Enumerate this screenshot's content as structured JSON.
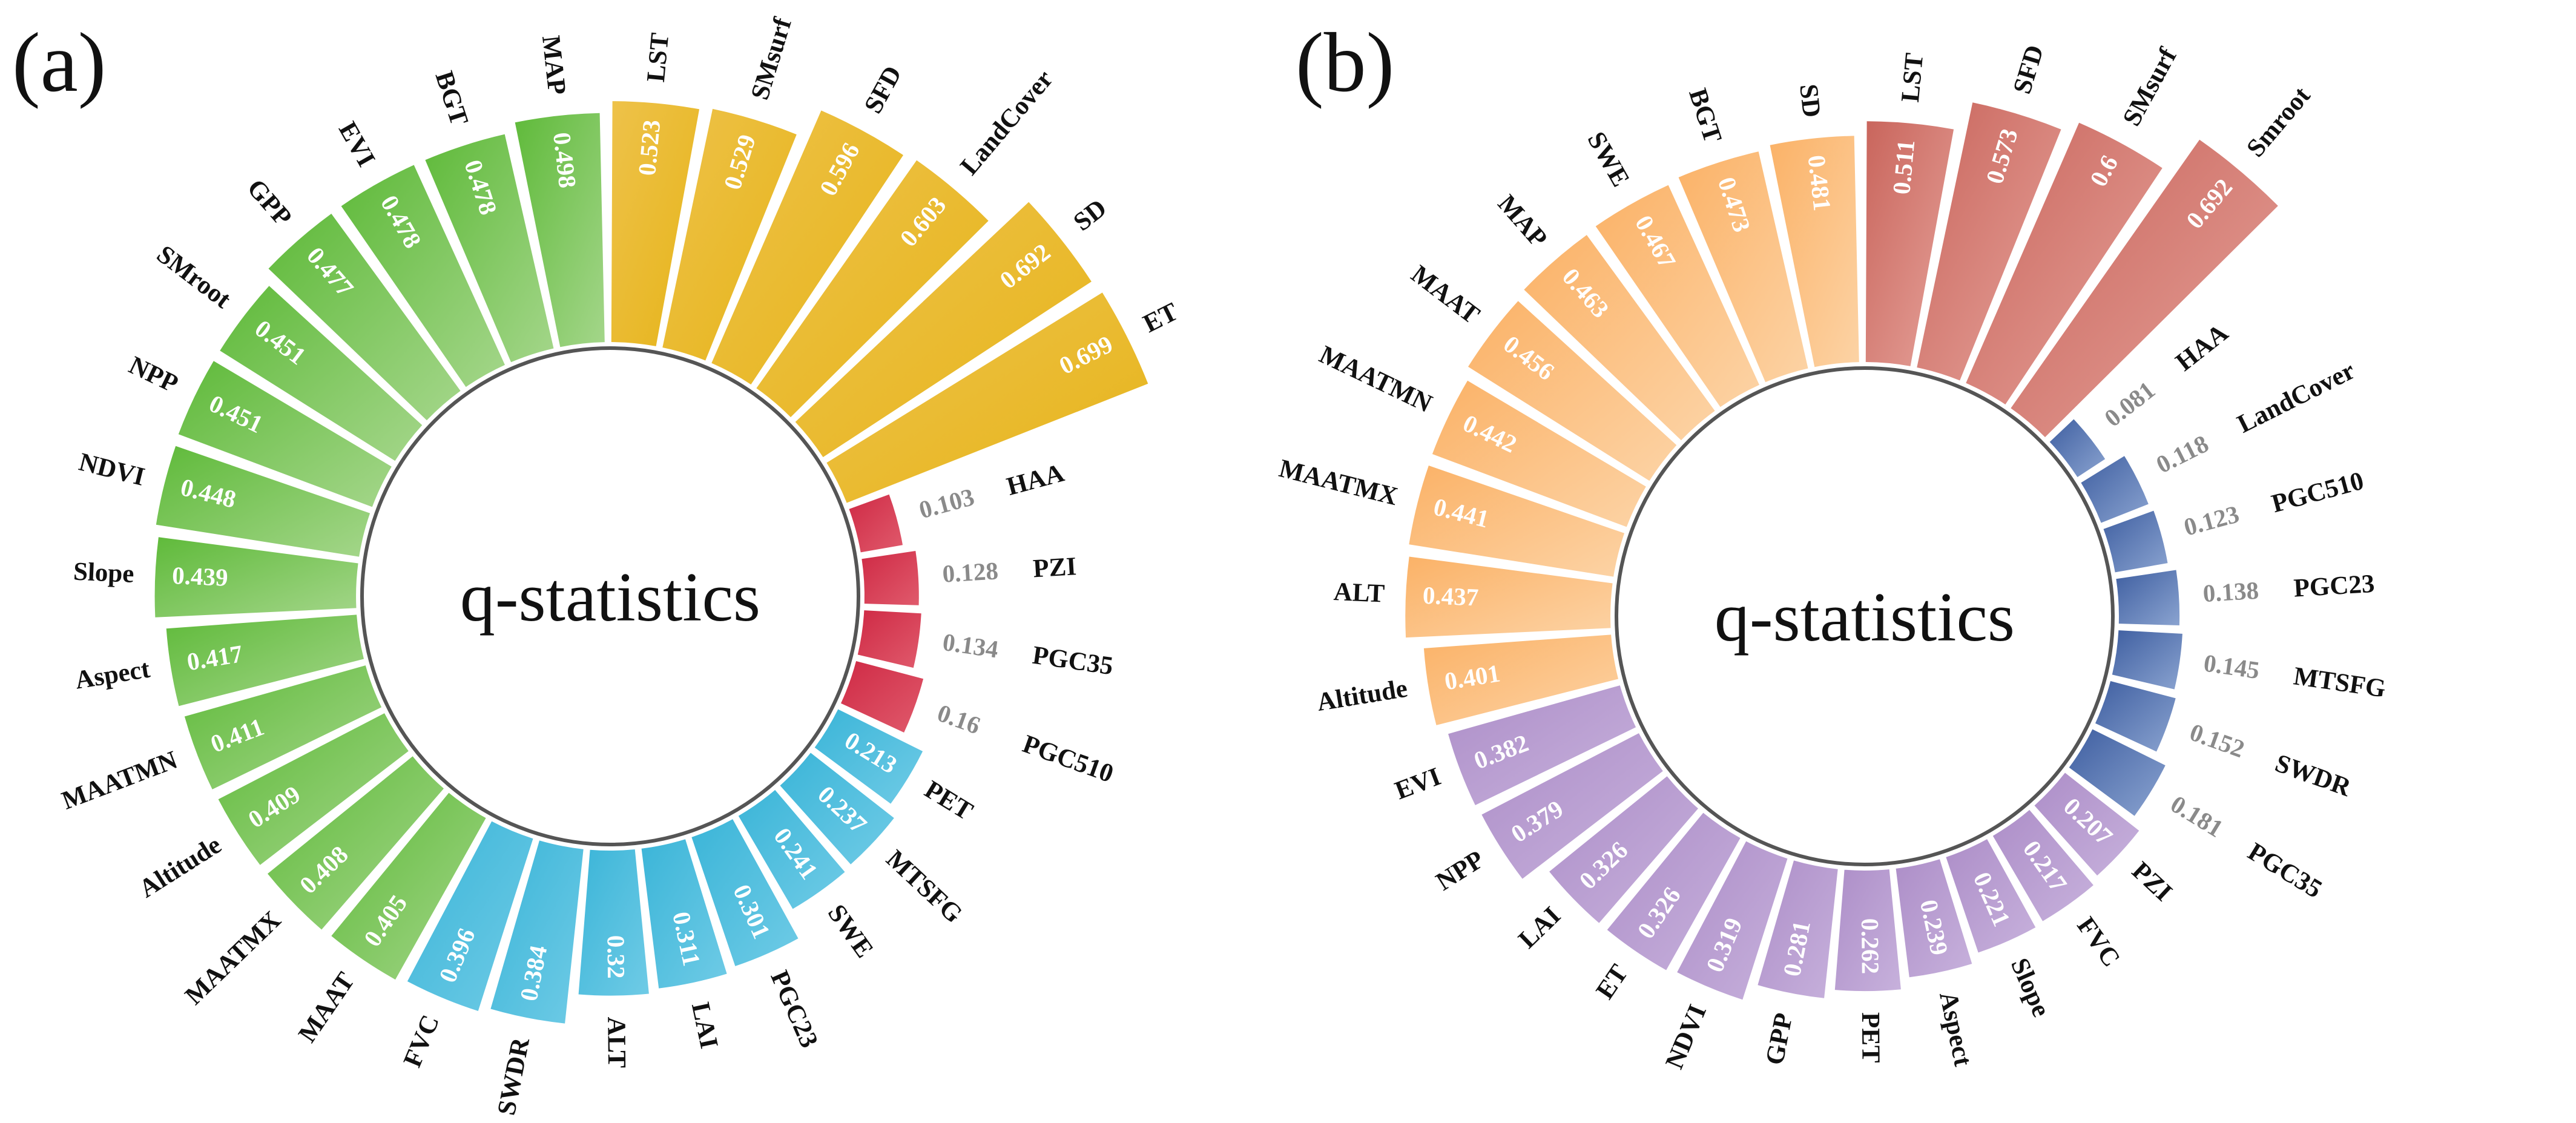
{
  "chart_data": [
    {
      "type": "bar",
      "subtype": "circular-bar",
      "panel_label": "(a)",
      "center_label": "q-statistics",
      "groups": [
        {
          "color_start": "#eec24a",
          "color_end": "#e6b419",
          "items": [
            {
              "label": "LST",
              "value": 0.523
            },
            {
              "label": "SMsurf",
              "value": 0.529
            },
            {
              "label": "SFD",
              "value": 0.596
            },
            {
              "label": "LandCover",
              "value": 0.603
            },
            {
              "label": "SD",
              "value": 0.692
            },
            {
              "label": "ET",
              "value": 0.699
            }
          ]
        },
        {
          "color_start": "#cf2a45",
          "color_end": "#e05a6c",
          "items": [
            {
              "label": "HAA",
              "value": 0.103
            },
            {
              "label": "PZI",
              "value": 0.128
            },
            {
              "label": "PGC35",
              "value": 0.134
            },
            {
              "label": "PGC510",
              "value": 0.16
            }
          ]
        },
        {
          "color_start": "#3bb5d8",
          "color_end": "#6fcbe6",
          "items": [
            {
              "label": "PET",
              "value": 0.213
            },
            {
              "label": "MTSFG",
              "value": 0.237
            },
            {
              "label": "SWE",
              "value": 0.241
            },
            {
              "label": "PGC23",
              "value": 0.301
            },
            {
              "label": "LAI",
              "value": 0.311
            },
            {
              "label": "ALT",
              "value": 0.32
            },
            {
              "label": "SWDR",
              "value": 0.384
            },
            {
              "label": "FVC",
              "value": 0.396
            }
          ]
        },
        {
          "color_start": "#5fba3a",
          "color_end": "#a4d68a",
          "items": [
            {
              "label": "MAAT",
              "value": 0.405
            },
            {
              "label": "MAATMX",
              "value": 0.408
            },
            {
              "label": "Altitude",
              "value": 0.409
            },
            {
              "label": "MAATMN",
              "value": 0.411
            },
            {
              "label": "Aspect",
              "value": 0.417
            },
            {
              "label": "Slope",
              "value": 0.439
            },
            {
              "label": "NDVI",
              "value": 0.448
            },
            {
              "label": "NPP",
              "value": 0.451
            },
            {
              "label": "SMroot",
              "value": 0.451
            },
            {
              "label": "GPP",
              "value": 0.477
            },
            {
              "label": "EVI",
              "value": 0.478
            },
            {
              "label": "BGT",
              "value": 0.478
            },
            {
              "label": "MAP",
              "value": 0.498
            }
          ]
        }
      ]
    },
    {
      "type": "bar",
      "subtype": "circular-bar",
      "panel_label": "(b)",
      "center_label": "q-statistics",
      "groups": [
        {
          "color_start": "#c9655c",
          "color_end": "#e6a39b",
          "items": [
            {
              "label": "LST",
              "value": 0.511
            },
            {
              "label": "SFD",
              "value": 0.573
            },
            {
              "label": "SMsurf",
              "value": 0.6
            },
            {
              "label": "Smroot",
              "value": 0.692
            }
          ]
        },
        {
          "color_start": "#3f5fa1",
          "color_end": "#8aa3d0",
          "items": [
            {
              "label": "HAA",
              "value": 0.081
            },
            {
              "label": "LandCover",
              "value": 0.118
            },
            {
              "label": "PGC510",
              "value": 0.123
            },
            {
              "label": "PGC23",
              "value": 0.138
            },
            {
              "label": "MTSFG",
              "value": 0.145
            },
            {
              "label": "SWDR",
              "value": 0.152
            },
            {
              "label": "PGC35",
              "value": 0.181
            }
          ]
        },
        {
          "color_start": "#ad8ec8",
          "color_end": "#c7b1dc",
          "items": [
            {
              "label": "PZI",
              "value": 0.207
            },
            {
              "label": "FVC",
              "value": 0.217
            },
            {
              "label": "Slope",
              "value": 0.221
            },
            {
              "label": "Aspect",
              "value": 0.239
            },
            {
              "label": "PET",
              "value": 0.262
            },
            {
              "label": "GPP",
              "value": 0.281
            },
            {
              "label": "NDVI",
              "value": 0.319
            },
            {
              "label": "ET",
              "value": 0.326
            },
            {
              "label": "LAI",
              "value": 0.326
            },
            {
              "label": "NPP",
              "value": 0.379
            },
            {
              "label": "EVI",
              "value": 0.382
            }
          ]
        },
        {
          "color_start": "#fbb267",
          "color_end": "#fcd3a5",
          "items": [
            {
              "label": "Altitude",
              "value": 0.401
            },
            {
              "label": "ALT",
              "value": 0.437
            },
            {
              "label": "MAATMX",
              "value": 0.441
            },
            {
              "label": "MAATMN",
              "value": 0.442
            },
            {
              "label": "MAAT",
              "value": 0.456
            },
            {
              "label": "MAP",
              "value": 0.463
            },
            {
              "label": "SWE",
              "value": 0.467
            },
            {
              "label": "BGT",
              "value": 0.473
            },
            {
              "label": "SD",
              "value": 0.481
            }
          ]
        }
      ]
    }
  ]
}
